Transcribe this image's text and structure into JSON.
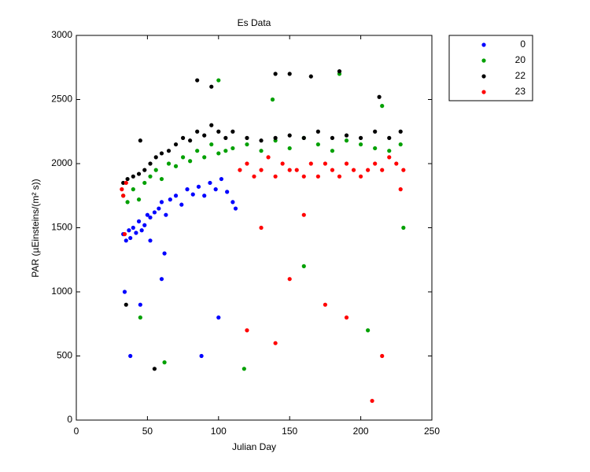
{
  "chart_data": {
    "type": "scatter",
    "title": "Es Data",
    "x_label": "Julian Day",
    "y_label": "PAR (µEinsteins/(m² s))",
    "xlim": [
      0,
      250
    ],
    "ylim": [
      0,
      3000
    ],
    "xticks": [
      0,
      50,
      100,
      150,
      200,
      250
    ],
    "yticks": [
      0,
      500,
      1000,
      1500,
      2000,
      2500,
      3000
    ],
    "legend_position": "outside-right",
    "series": [
      {
        "name": "0",
        "color": "#0000ff",
        "x": [
          33,
          35,
          37,
          38,
          40,
          42,
          44,
          46,
          48,
          50,
          52,
          55,
          58,
          60,
          63,
          66,
          70,
          74,
          78,
          82,
          86,
          90,
          94,
          98,
          102,
          106,
          110,
          112,
          38,
          45,
          60,
          88,
          100,
          62,
          52,
          34
        ],
        "y": [
          1450,
          1400,
          1480,
          1420,
          1500,
          1460,
          1550,
          1480,
          1520,
          1600,
          1580,
          1620,
          1650,
          1700,
          1600,
          1720,
          1750,
          1680,
          1800,
          1760,
          1820,
          1750,
          1850,
          1800,
          1880,
          1780,
          1700,
          1650,
          500,
          900,
          1100,
          500,
          800,
          1300,
          1400,
          1000
        ]
      },
      {
        "name": "20",
        "color": "#00a000",
        "x": [
          33,
          36,
          40,
          44,
          48,
          52,
          56,
          60,
          65,
          70,
          75,
          80,
          85,
          90,
          95,
          100,
          105,
          110,
          120,
          130,
          140,
          150,
          160,
          170,
          180,
          190,
          200,
          210,
          220,
          228,
          45,
          62,
          100,
          118,
          138,
          160,
          185,
          205,
          215,
          230
        ],
        "y": [
          1750,
          1700,
          1800,
          1720,
          1850,
          1900,
          1950,
          1880,
          2000,
          1980,
          2050,
          2020,
          2100,
          2050,
          2150,
          2080,
          2100,
          2120,
          2150,
          2100,
          2180,
          2120,
          2200,
          2150,
          2100,
          2180,
          2150,
          2120,
          2100,
          2150,
          800,
          450,
          2650,
          400,
          2500,
          1200,
          2700,
          700,
          2450,
          1500
        ]
      },
      {
        "name": "22",
        "color": "#000000",
        "x": [
          33,
          36,
          40,
          44,
          48,
          52,
          56,
          60,
          65,
          70,
          75,
          80,
          85,
          90,
          95,
          100,
          105,
          110,
          120,
          130,
          140,
          150,
          160,
          170,
          180,
          190,
          200,
          210,
          220,
          228,
          45,
          55,
          85,
          95,
          140,
          150,
          165,
          185,
          213,
          35
        ],
        "y": [
          1850,
          1880,
          1900,
          1920,
          1950,
          2000,
          2050,
          2080,
          2100,
          2150,
          2200,
          2180,
          2250,
          2220,
          2300,
          2250,
          2200,
          2250,
          2200,
          2180,
          2200,
          2220,
          2200,
          2250,
          2200,
          2220,
          2200,
          2250,
          2200,
          2250,
          2180,
          400,
          2650,
          2600,
          2700,
          2700,
          2680,
          2720,
          2520,
          900
        ]
      },
      {
        "name": "23",
        "color": "#ff0000",
        "x": [
          32,
          33,
          34,
          35,
          115,
          120,
          125,
          130,
          135,
          140,
          145,
          150,
          155,
          160,
          165,
          170,
          175,
          180,
          185,
          190,
          195,
          200,
          205,
          210,
          215,
          220,
          225,
          230,
          120,
          130,
          140,
          150,
          160,
          175,
          190,
          208,
          215,
          228
        ],
        "y": [
          1800,
          1750,
          1450,
          1850,
          1950,
          2000,
          1900,
          1950,
          2050,
          1900,
          2000,
          1950,
          1950,
          1900,
          2000,
          1900,
          2000,
          1950,
          1900,
          2000,
          1950,
          1900,
          1950,
          2000,
          1950,
          2050,
          2000,
          1950,
          700,
          1500,
          600,
          1100,
          1600,
          900,
          800,
          150,
          500,
          1800
        ]
      }
    ]
  }
}
